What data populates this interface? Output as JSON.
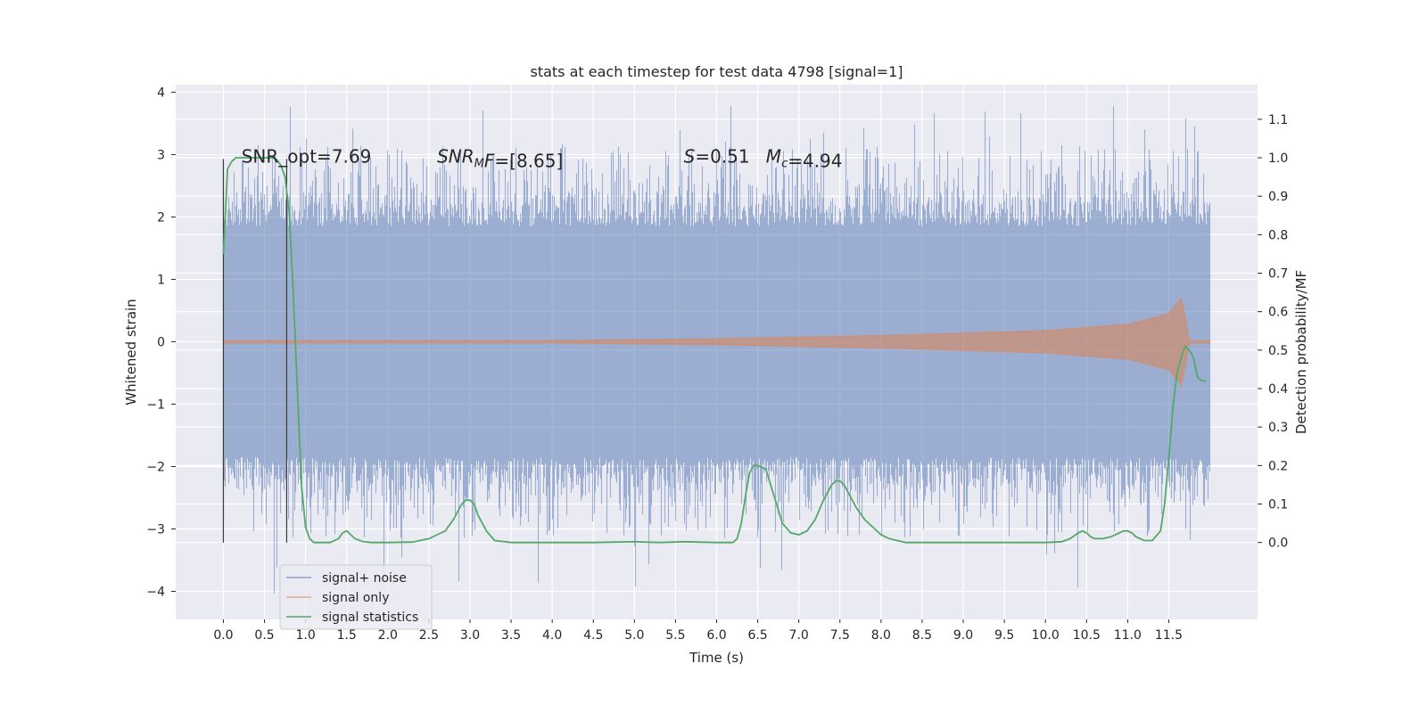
{
  "chart_data": {
    "type": "line",
    "title": "stats at each timestep for test data 4798 [signal=1]",
    "xlabel": "Time (s)",
    "ylabel": "Whitened strain",
    "y2label": "Detection probability/MF",
    "xlim": [
      -0.58,
      12.58
    ],
    "ylim": [
      -4.45,
      4.12
    ],
    "y2lim": [
      -0.2,
      1.19
    ],
    "x_ticks": [
      0.0,
      0.5,
      1.0,
      1.5,
      2.0,
      2.5,
      3.0,
      3.5,
      4.0,
      4.5,
      5.0,
      5.5,
      6.0,
      6.5,
      7.0,
      7.5,
      8.0,
      8.5,
      9.0,
      9.5,
      10.0,
      10.5,
      11.0,
      11.5
    ],
    "x_tick_labels": [
      "0.0",
      "0.5",
      "1.0",
      "1.5",
      "2.0",
      "2.5",
      "3.0",
      "3.5",
      "4.0",
      "4.5",
      "5.0",
      "5.5",
      "6.0",
      "6.5",
      "7.0",
      "7.5",
      "8.0",
      "8.5",
      "9.0",
      "9.5",
      "10.0",
      "10.5",
      "11.0",
      "11.5"
    ],
    "y_ticks": [
      -4,
      -3,
      -2,
      -1,
      0,
      1,
      2,
      3,
      4
    ],
    "y_tick_labels": [
      "−4",
      "−3",
      "−2",
      "−1",
      "0",
      "1",
      "2",
      "3",
      "4"
    ],
    "y2_ticks": [
      0.0,
      0.1,
      0.2,
      0.3,
      0.4,
      0.5,
      0.6,
      0.7,
      0.8,
      0.9,
      1.0,
      1.1
    ],
    "y2_tick_labels": [
      "0.0",
      "0.1",
      "0.2",
      "0.3",
      "0.4",
      "0.5",
      "0.6",
      "0.7",
      "0.8",
      "0.9",
      "1.0",
      "1.1"
    ],
    "grid": true,
    "legend_placement": "lower-left",
    "series": [
      {
        "name": "signal+ noise",
        "axis": "left",
        "color": "#4c72b0",
        "description_values": {
          "x_start": 0.0,
          "x_end": 12.0,
          "typical_range": [
            -2.0,
            2.0
          ],
          "max": 3.78,
          "min": -4.08
        }
      },
      {
        "name": "signal only",
        "axis": "left",
        "color": "#dd8452",
        "envelope": {
          "x": [
            0.0,
            4.0,
            6.0,
            8.0,
            10.0,
            11.0,
            11.5,
            11.65,
            11.7,
            11.72,
            12.0
          ],
          "amplitude": [
            0.02,
            0.02,
            0.05,
            0.1,
            0.18,
            0.28,
            0.45,
            0.7,
            0.4,
            0.02,
            0.02
          ]
        }
      },
      {
        "name": "signal statistics",
        "axis": "right",
        "color": "#55a868",
        "x": [
          0.0,
          0.05,
          0.1,
          0.15,
          0.2,
          0.3,
          0.4,
          0.5,
          0.6,
          0.65,
          0.7,
          0.75,
          0.8,
          0.85,
          0.9,
          0.95,
          1.0,
          1.05,
          1.1,
          1.2,
          1.3,
          1.4,
          1.45,
          1.5,
          1.55,
          1.6,
          1.7,
          1.8,
          2.0,
          2.3,
          2.5,
          2.6,
          2.7,
          2.8,
          2.9,
          2.95,
          3.0,
          3.05,
          3.1,
          3.2,
          3.3,
          3.5,
          4.0,
          4.5,
          5.0,
          5.3,
          5.6,
          6.0,
          6.2,
          6.25,
          6.3,
          6.35,
          6.4,
          6.45,
          6.5,
          6.6,
          6.7,
          6.8,
          6.9,
          7.0,
          7.1,
          7.2,
          7.3,
          7.4,
          7.45,
          7.5,
          7.55,
          7.6,
          7.7,
          7.8,
          7.9,
          8.0,
          8.1,
          8.3,
          8.6,
          9.0,
          9.5,
          10.0,
          10.2,
          10.3,
          10.4,
          10.45,
          10.5,
          10.55,
          10.6,
          10.7,
          10.8,
          10.9,
          10.95,
          11.0,
          11.05,
          11.1,
          11.2,
          11.3,
          11.4,
          11.45,
          11.5,
          11.55,
          11.6,
          11.65,
          11.7,
          11.75,
          11.8,
          11.85,
          11.9,
          11.95
        ],
        "y": [
          0.75,
          0.97,
          0.99,
          1.0,
          1.0,
          1.0,
          1.0,
          1.0,
          1.0,
          0.995,
          0.98,
          0.95,
          0.86,
          0.65,
          0.4,
          0.15,
          0.04,
          0.01,
          0.0,
          0.0,
          0.0,
          0.01,
          0.025,
          0.03,
          0.02,
          0.01,
          0.002,
          0.0,
          0.0,
          0.001,
          0.01,
          0.02,
          0.03,
          0.06,
          0.1,
          0.11,
          0.11,
          0.1,
          0.07,
          0.03,
          0.005,
          0.0,
          0.0,
          0.0,
          0.002,
          0.0,
          0.002,
          0.0,
          0.0,
          0.01,
          0.05,
          0.12,
          0.18,
          0.2,
          0.2,
          0.19,
          0.12,
          0.05,
          0.025,
          0.02,
          0.03,
          0.06,
          0.11,
          0.15,
          0.16,
          0.16,
          0.15,
          0.13,
          0.09,
          0.06,
          0.04,
          0.02,
          0.01,
          0.0,
          0.0,
          0.0,
          0.0,
          0.0,
          0.002,
          0.01,
          0.025,
          0.03,
          0.025,
          0.015,
          0.01,
          0.01,
          0.015,
          0.025,
          0.03,
          0.03,
          0.025,
          0.015,
          0.005,
          0.005,
          0.03,
          0.1,
          0.22,
          0.35,
          0.44,
          0.48,
          0.51,
          0.5,
          0.48,
          0.43,
          0.42,
          0.42
        ]
      }
    ],
    "vertical_lines": [
      0.0,
      0.77
    ],
    "annotations": [
      {
        "id": "snr_opt",
        "x": 0.22,
        "y": 2.97,
        "text": "SNR_opt=7.69"
      },
      {
        "id": "snr_mf",
        "x": 2.6,
        "y": 2.97,
        "parts": [
          {
            "t": "SNR",
            "italic": true
          },
          {
            "t": "M",
            "italic": true,
            "sub": true
          },
          {
            "t": "F",
            "italic": true
          },
          {
            "t": "=[8.65]"
          }
        ]
      },
      {
        "id": "s_val",
        "x": 5.6,
        "y": 2.97,
        "parts": [
          {
            "t": "S",
            "italic": true
          },
          {
            "t": "=0.51"
          }
        ]
      },
      {
        "id": "mc_val",
        "x": 6.6,
        "y": 2.97,
        "parts": [
          {
            "t": "M",
            "italic": true
          },
          {
            "t": "c",
            "italic": true,
            "sub": true
          },
          {
            "t": "=4.94"
          }
        ]
      }
    ]
  }
}
